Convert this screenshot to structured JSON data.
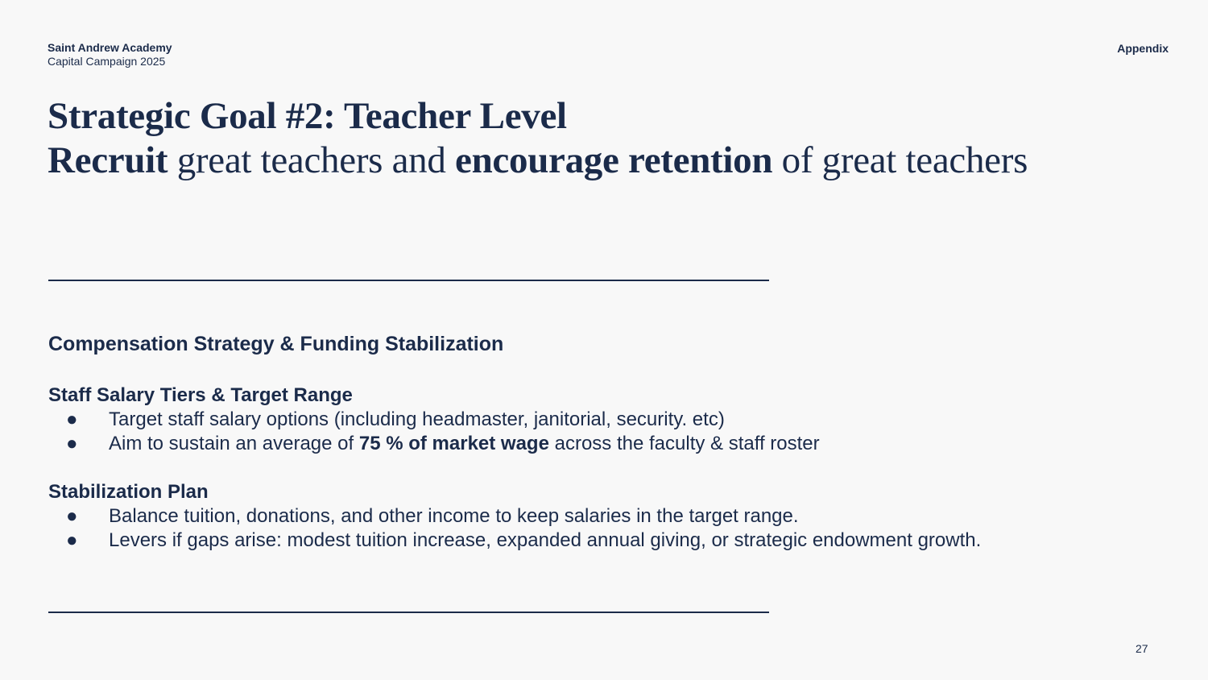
{
  "header": {
    "org_name": "Saint Andrew Academy",
    "org_subtitle": "Capital Campaign 2025",
    "section": "Appendix"
  },
  "title": {
    "line1": "Strategic Goal #2: Teacher Level",
    "line2": {
      "w1": "Recruit",
      "t1": " great teachers and ",
      "w2": "encourage retention",
      "t2": " of great teachers"
    }
  },
  "content": {
    "heading": "Compensation Strategy & Funding Stabilization",
    "sections": [
      {
        "title": "Staff Salary Tiers & Target Range",
        "bullets": [
          {
            "text": "Target staff salary options (including headmaster, janitorial, security. etc)"
          },
          {
            "pre": "Aim to sustain an average of ",
            "bold": "75 % of market wage",
            "post": " across the faculty & staff roster"
          }
        ]
      },
      {
        "title": "Stabilization Plan",
        "bullets": [
          {
            "text": "Balance tuition, donations, and other income to keep salaries in the target range."
          },
          {
            "text": "Levers if gaps arise: modest tuition increase, expanded annual giving, or strategic endowment growth."
          }
        ]
      }
    ],
    "bullet_glyph": "●"
  },
  "footer": {
    "page_number": "27"
  }
}
